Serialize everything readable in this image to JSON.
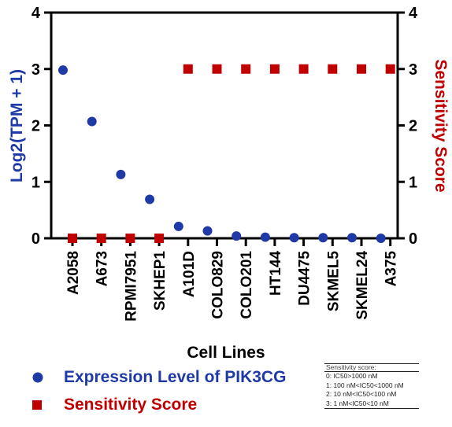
{
  "chart_data": {
    "type": "scatter",
    "title": "",
    "xlabel": "Cell Lines",
    "ylabel_left": "Log2(TPM + 1)",
    "ylabel_right": "Sensitivity Score",
    "ylim_left": [
      0,
      4
    ],
    "ylim_right": [
      0,
      4
    ],
    "yticks_left": [
      0,
      1,
      2,
      3,
      4
    ],
    "yticks_right": [
      0,
      1,
      2,
      3,
      4
    ],
    "categories": [
      "A2058",
      "A673",
      "RPMI7951",
      "SKHEP1",
      "A101D",
      "COLO829",
      "COLO201",
      "HT144",
      "DU4475",
      "SKMEL5",
      "SKMEL24",
      "A375"
    ],
    "series": [
      {
        "name": "Expression Level of PIK3CG",
        "axis": "left",
        "marker": "circle",
        "color": "#1f3aa6",
        "values": [
          2.98,
          2.07,
          1.13,
          0.69,
          0.21,
          0.13,
          0.04,
          0.02,
          0.01,
          0.01,
          0.01,
          0.0
        ]
      },
      {
        "name": "Sensitivity Score",
        "axis": "right",
        "marker": "square",
        "color": "#c00000",
        "values": [
          0,
          0,
          0,
          0,
          3,
          3,
          3,
          3,
          3,
          3,
          3,
          3
        ]
      }
    ],
    "grid": false,
    "legend_position": "bottom-left"
  },
  "legend": {
    "expression_label": "Expression Level of PIK3CG",
    "sensitivity_label": "Sensitivity Score"
  },
  "score_key": {
    "title": "Sensitivity score:",
    "lines": [
      "0: IC50>1000 nM",
      "1: 100 nM<IC50<1000 nM",
      "2: 10 nM<IC50<100 nM",
      "3: 1 nM<IC50<10 nM"
    ]
  },
  "colors": {
    "blue": "#1f3aa6",
    "red": "#c00000",
    "axis": "#000000"
  }
}
